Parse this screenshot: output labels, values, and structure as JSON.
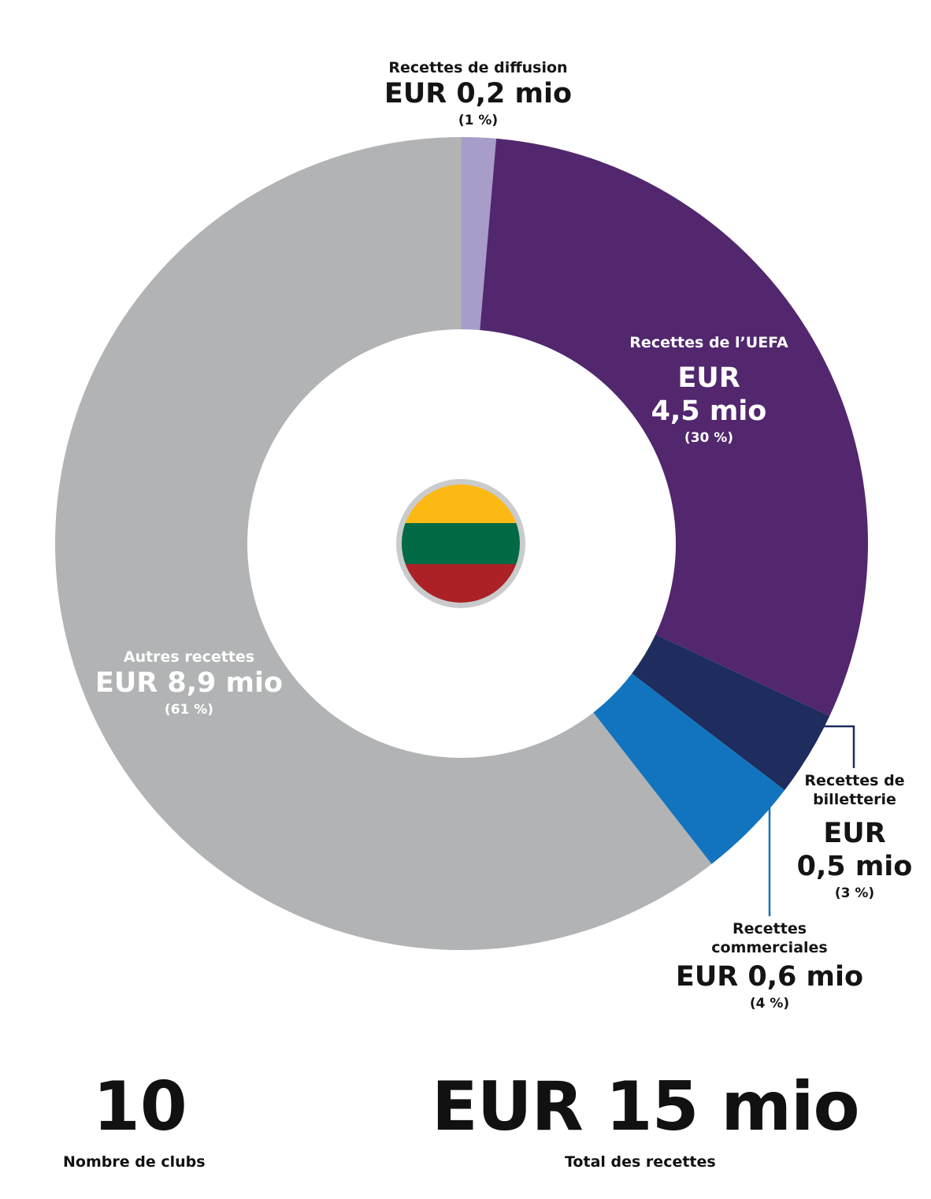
{
  "chart_data": {
    "type": "pie",
    "variant": "donut",
    "unit": "EUR mio",
    "slices": [
      {
        "name": "Recettes de diffusion",
        "value_label": "EUR 0,2 mio",
        "value": 0.2,
        "percent_label": "(1 %)",
        "percent": 1,
        "color": "#a89cc8"
      },
      {
        "name": "Recettes de l’UEFA",
        "value_label": "EUR 4,5 mio",
        "value": 4.5,
        "percent_label": "(30 %)",
        "percent": 30,
        "color": "#52276e"
      },
      {
        "name": "Recettes de billetterie",
        "value_label": "EUR 0,5 mio",
        "value": 0.5,
        "percent_label": "(3 %)",
        "percent": 3,
        "color": "#1e2d5e"
      },
      {
        "name": "Recettes commerciales",
        "value_label": "EUR 0,6 mio",
        "value": 0.6,
        "percent_label": "(4 %)",
        "percent": 4,
        "color": "#1274bf"
      },
      {
        "name": "Autres recettes",
        "value_label": "EUR 8,9 mio",
        "value": 8.9,
        "percent_label": "(61 %)",
        "percent": 61,
        "color": "#b1b3b4"
      }
    ],
    "center_emblem": "lithuania-flag",
    "flag_colors": [
      "#fdb913",
      "#006a44",
      "#c1272d"
    ]
  },
  "labels": {
    "diffusion": {
      "name": "Recettes de diffusion",
      "value": "EUR 0,2 mio",
      "pct": "(1 %)"
    },
    "uefa": {
      "name": "Recettes de l’UEFA",
      "value_line1": "EUR",
      "value_line2": "4,5 mio",
      "pct": "(30 %)"
    },
    "billetterie": {
      "name_line1": "Recettes de",
      "name_line2": "billetterie",
      "value_line1": "EUR",
      "value_line2": "0,5 mio",
      "pct": "(3 %)"
    },
    "commerciales": {
      "name_line1": "Recettes",
      "name_line2": "commerciales",
      "value": "EUR 0,6 mio",
      "pct": "(4 %)"
    },
    "autres": {
      "name": "Autres recettes",
      "value": "EUR 8,9 mio",
      "pct": "(61 %)"
    }
  },
  "kpis": {
    "clubs_value": "10",
    "clubs_caption": "Nombre de clubs",
    "total_value": "EUR 15 mio",
    "total_caption": "Total des recettes"
  }
}
